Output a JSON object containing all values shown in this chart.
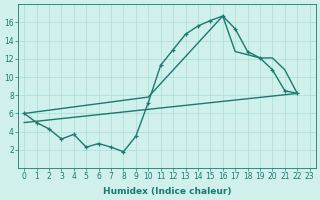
{
  "xlabel": "Humidex (Indice chaleur)",
  "bg_color": "#cff0eb",
  "grid_color": "#aaddd8",
  "line_color": "#1a7a6e",
  "xlim": [
    -0.5,
    23.5
  ],
  "ylim": [
    0,
    18
  ],
  "yticks": [
    2,
    4,
    6,
    8,
    10,
    12,
    14,
    16
  ],
  "xticks": [
    0,
    1,
    2,
    3,
    4,
    5,
    6,
    7,
    8,
    9,
    10,
    11,
    12,
    13,
    14,
    15,
    16,
    17,
    18,
    19,
    20,
    21,
    22,
    23
  ],
  "curve1_x": [
    0,
    1,
    2,
    3,
    4,
    5,
    6,
    7,
    8,
    9,
    10,
    11,
    12,
    13,
    14,
    15,
    16,
    17,
    18,
    19,
    20,
    21,
    22
  ],
  "curve1_y": [
    6.0,
    5.0,
    4.3,
    3.2,
    3.7,
    2.3,
    2.7,
    2.3,
    1.8,
    3.5,
    7.2,
    11.3,
    13.0,
    14.7,
    15.6,
    16.2,
    16.7,
    15.3,
    12.8,
    12.1,
    10.8,
    8.5,
    8.2
  ],
  "curve2_x": [
    0,
    10,
    16,
    17,
    19,
    20,
    21,
    22
  ],
  "curve2_y": [
    6.0,
    7.8,
    16.7,
    12.8,
    12.1,
    12.1,
    10.8,
    8.2
  ],
  "line3_x": [
    0,
    22
  ],
  "line3_y": [
    5.0,
    8.2
  ],
  "markersize": 3.5,
  "linewidth": 1.0,
  "tick_fontsize": 5.5,
  "xlabel_fontsize": 6.5
}
